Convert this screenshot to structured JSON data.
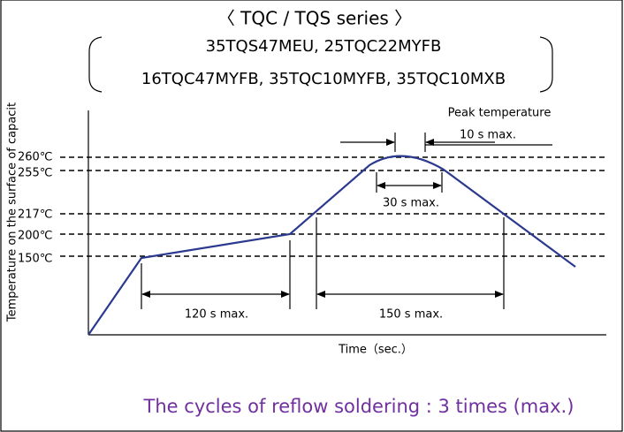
{
  "header": {
    "title": "〈 TQC / TQS series 〉",
    "models_line1": "35TQS47MEU, 25TQC22MYFB",
    "models_line2": "16TQC47MYFB, 35TQC10MYFB, 35TQC10MXB"
  },
  "diagram": {
    "y_axis_label": "Temperature on the surface of capacit",
    "x_axis_label": "Time（sec.）",
    "temperature_levels": [
      "260℃",
      "255℃",
      "217℃",
      "200℃",
      "150℃"
    ],
    "annotations": {
      "peak": "Peak temperature",
      "peak_time": "10 s max.",
      "above_255": "30 s max.",
      "preheat": "120 s max.",
      "above_217": "150 s max."
    }
  },
  "footer": {
    "note": "The cycles of reflow soldering : 3 times (max.)"
  }
}
